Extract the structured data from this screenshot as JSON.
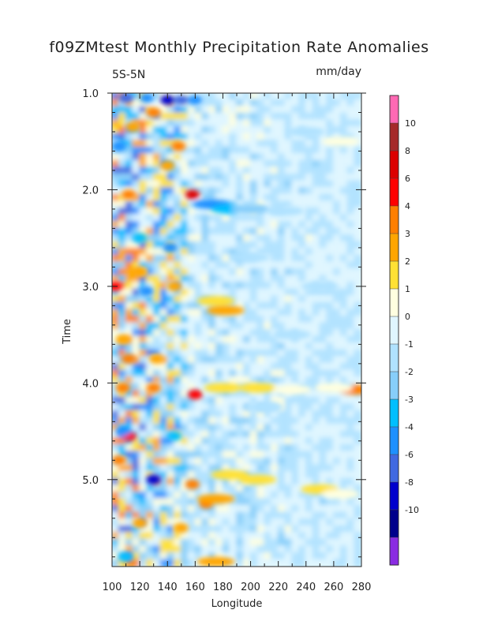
{
  "chart_data": {
    "type": "heatmap",
    "title": "f09ZMtest Monthly Precipitation Rate Anomalies",
    "region_label": "5S-5N",
    "units_label": "mm/day",
    "xlabel": "Longitude",
    "ylabel": "Time",
    "xlim": [
      100,
      280
    ],
    "ylim": [
      1.0,
      5.9
    ],
    "y_inverted": true,
    "x_ticks": [
      "100",
      "120",
      "140",
      "160",
      "180",
      "200",
      "220",
      "240",
      "260",
      "280"
    ],
    "y_ticks": [
      "1.0",
      "2.0",
      "3.0",
      "4.0",
      "5.0"
    ],
    "colorbar": {
      "labels": [
        "10",
        "8",
        "6",
        "4",
        "3",
        "2",
        "1",
        "0",
        "-1",
        "-2",
        "-3",
        "-4",
        "-6",
        "-8",
        "-10"
      ],
      "colors": [
        "#8a2be2",
        "#00008b",
        "#0000cd",
        "#4169e1",
        "#1e90ff",
        "#00bfff",
        "#87cefa",
        "#b0e2ff",
        "#e0f6ff",
        "#ffffe0",
        "#ffe135",
        "#ffa500",
        "#ff7f00",
        "#ff0000",
        "#dc0000",
        "#a52a2a",
        "#ff69b4"
      ]
    },
    "features": [
      {
        "x": 110,
        "y": 1.05,
        "value": -6
      },
      {
        "x": 125,
        "y": 1.05,
        "value": -4
      },
      {
        "x": 140,
        "y": 1.07,
        "value": -8
      },
      {
        "x": 150,
        "y": 1.07,
        "value": -6
      },
      {
        "x": 160,
        "y": 1.07,
        "value": -4
      },
      {
        "x": 115,
        "y": 1.35,
        "value": 3
      },
      {
        "x": 130,
        "y": 1.2,
        "value": 4
      },
      {
        "x": 105,
        "y": 1.55,
        "value": -4
      },
      {
        "x": 148,
        "y": 1.55,
        "value": 4
      },
      {
        "x": 140,
        "y": 1.75,
        "value": 3
      },
      {
        "x": 112,
        "y": 2.05,
        "value": 4
      },
      {
        "x": 158,
        "y": 2.05,
        "value": 8
      },
      {
        "x": 172,
        "y": 2.15,
        "value": -4
      },
      {
        "x": 185,
        "y": 2.2,
        "value": -3
      },
      {
        "x": 200,
        "y": 2.2,
        "value": -2
      },
      {
        "x": 225,
        "y": 2.22,
        "value": -1
      },
      {
        "x": 120,
        "y": 2.5,
        "value": -3
      },
      {
        "x": 142,
        "y": 2.6,
        "value": -4
      },
      {
        "x": 102,
        "y": 3.0,
        "value": 6
      },
      {
        "x": 125,
        "y": 3.05,
        "value": -4
      },
      {
        "x": 120,
        "y": 2.85,
        "value": 3
      },
      {
        "x": 145,
        "y": 3.0,
        "value": 3
      },
      {
        "x": 175,
        "y": 3.15,
        "value": 2
      },
      {
        "x": 182,
        "y": 3.25,
        "value": 3
      },
      {
        "x": 108,
        "y": 3.55,
        "value": 3
      },
      {
        "x": 112,
        "y": 3.75,
        "value": 4
      },
      {
        "x": 132,
        "y": 3.75,
        "value": 3
      },
      {
        "x": 108,
        "y": 4.05,
        "value": 4
      },
      {
        "x": 130,
        "y": 4.05,
        "value": 4
      },
      {
        "x": 160,
        "y": 4.12,
        "value": 6
      },
      {
        "x": 180,
        "y": 4.05,
        "value": 2
      },
      {
        "x": 205,
        "y": 4.05,
        "value": 2
      },
      {
        "x": 230,
        "y": 4.07,
        "value": 1
      },
      {
        "x": 275,
        "y": 4.07,
        "value": 4
      },
      {
        "x": 260,
        "y": 4.05,
        "value": 1
      },
      {
        "x": 112,
        "y": 4.55,
        "value": 6
      },
      {
        "x": 108,
        "y": 4.5,
        "value": -4
      },
      {
        "x": 145,
        "y": 4.55,
        "value": -3
      },
      {
        "x": 105,
        "y": 4.8,
        "value": 4
      },
      {
        "x": 130,
        "y": 5.0,
        "value": -8
      },
      {
        "x": 158,
        "y": 5.05,
        "value": 4
      },
      {
        "x": 168,
        "y": 5.25,
        "value": 4
      },
      {
        "x": 175,
        "y": 5.2,
        "value": 3
      },
      {
        "x": 185,
        "y": 4.95,
        "value": 2
      },
      {
        "x": 205,
        "y": 5.0,
        "value": 2
      },
      {
        "x": 250,
        "y": 5.1,
        "value": 2
      },
      {
        "x": 265,
        "y": 5.15,
        "value": 1
      },
      {
        "x": 120,
        "y": 5.45,
        "value": 3
      },
      {
        "x": 150,
        "y": 5.5,
        "value": 3
      },
      {
        "x": 175,
        "y": 5.85,
        "value": 3
      },
      {
        "x": 110,
        "y": 5.8,
        "value": -3
      },
      {
        "x": 210,
        "y": 4.25,
        "value": -1
      },
      {
        "x": 230,
        "y": 3.5,
        "value": -1
      },
      {
        "x": 200,
        "y": 2.7,
        "value": -1
      },
      {
        "x": 250,
        "y": 3.0,
        "value": -1
      },
      {
        "x": 240,
        "y": 1.4,
        "value": -1
      },
      {
        "x": 265,
        "y": 1.5,
        "value": 1
      }
    ]
  }
}
